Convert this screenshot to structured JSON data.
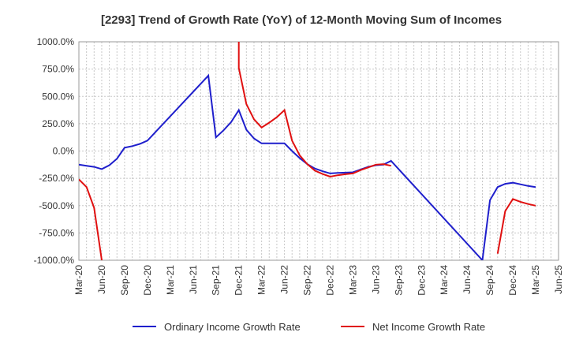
{
  "chart_data": {
    "type": "line",
    "title": "[2293]  Trend of Growth Rate (YoY) of 12-Month Moving Sum of Incomes",
    "xlabel": "",
    "ylabel": "",
    "ylim": [
      -1000,
      1000
    ],
    "y_ticks": [
      1000,
      750,
      500,
      250,
      0,
      -250,
      -500,
      -750,
      -1000
    ],
    "y_tick_labels": [
      "1000.0%",
      "750.0%",
      "500.0%",
      "250.0%",
      "0.0%",
      "-250.0%",
      "-500.0%",
      "-750.0%",
      "-1000.0%"
    ],
    "x_range": [
      "Mar-20",
      "Jun-25"
    ],
    "x_tick_labels": [
      "Mar-20",
      "Jun-20",
      "Sep-20",
      "Dec-20",
      "Mar-21",
      "Jun-21",
      "Sep-21",
      "Dec-21",
      "Mar-22",
      "Jun-22",
      "Sep-22",
      "Dec-22",
      "Mar-23",
      "Jun-23",
      "Sep-23",
      "Dec-23",
      "Mar-24",
      "Jun-24",
      "Sep-24",
      "Dec-24",
      "Mar-25",
      "Jun-25"
    ],
    "grid": true,
    "legend_position": "bottom",
    "series": [
      {
        "name": "Ordinary Income Growth Rate",
        "color": "#1f1fcc",
        "points": [
          [
            "Mar-20",
            -125
          ],
          [
            "Apr-20",
            -135
          ],
          [
            "May-20",
            -145
          ],
          [
            "Jun-20",
            -165
          ],
          [
            "Jul-20",
            -130
          ],
          [
            "Aug-20",
            -70
          ],
          [
            "Sep-20",
            30
          ],
          [
            "Oct-20",
            45
          ],
          [
            "Nov-20",
            65
          ],
          [
            "Dec-20",
            95
          ],
          [
            "Aug-21",
            690
          ],
          [
            "Sep-21",
            125
          ],
          [
            "Oct-21",
            190
          ],
          [
            "Nov-21",
            265
          ],
          [
            "Dec-21",
            375
          ],
          [
            "Jan-22",
            195
          ],
          [
            "Feb-22",
            115
          ],
          [
            "Mar-22",
            70
          ],
          [
            "Apr-22",
            70
          ],
          [
            "May-22",
            70
          ],
          [
            "Jun-22",
            70
          ],
          [
            "Jul-22",
            0
          ],
          [
            "Aug-22",
            -65
          ],
          [
            "Sep-22",
            -120
          ],
          [
            "Oct-22",
            -160
          ],
          [
            "Nov-22",
            -185
          ],
          [
            "Dec-22",
            -205
          ],
          [
            "Jan-23",
            -200
          ],
          [
            "Feb-23",
            -198
          ],
          [
            "Mar-23",
            -195
          ],
          [
            "Apr-23",
            -170
          ],
          [
            "May-23",
            -145
          ],
          [
            "Jun-23",
            -130
          ],
          [
            "Jul-23",
            -125
          ],
          [
            "Aug-23",
            -90
          ],
          [
            "Aug-24",
            -1000
          ],
          [
            "Sep-24",
            -450
          ],
          [
            "Oct-24",
            -330
          ],
          [
            "Nov-24",
            -300
          ],
          [
            "Dec-24",
            -290
          ],
          [
            "Jan-25",
            -305
          ],
          [
            "Feb-25",
            -320
          ],
          [
            "Mar-25",
            -330
          ]
        ]
      },
      {
        "name": "Net Income Growth Rate",
        "color": "#e01010",
        "points": [
          [
            "Mar-20",
            -260
          ],
          [
            "Apr-20",
            -330
          ],
          [
            "May-20",
            -520
          ],
          [
            "Jun-20",
            -1000
          ],
          null,
          [
            "Dec-21",
            1000
          ],
          [
            "Dec-21",
            760
          ],
          [
            "Jan-22",
            430
          ],
          [
            "Feb-22",
            290
          ],
          [
            "Mar-22",
            215
          ],
          [
            "Apr-22",
            260
          ],
          [
            "May-22",
            310
          ],
          [
            "Jun-22",
            375
          ],
          [
            "Jul-22",
            95
          ],
          [
            "Aug-22",
            -40
          ],
          [
            "Sep-22",
            -120
          ],
          [
            "Oct-22",
            -180
          ],
          [
            "Nov-22",
            -210
          ],
          [
            "Dec-22",
            -235
          ],
          [
            "Jan-23",
            -222
          ],
          [
            "Feb-23",
            -212
          ],
          [
            "Mar-23",
            -205
          ],
          [
            "Apr-23",
            -175
          ],
          [
            "May-23",
            -150
          ],
          [
            "Jun-23",
            -125
          ],
          [
            "Jul-23",
            -120
          ],
          [
            "Aug-23",
            -135
          ],
          null,
          [
            "Oct-24",
            -940
          ],
          [
            "Nov-24",
            -550
          ],
          [
            "Dec-24",
            -440
          ],
          [
            "Jan-25",
            -465
          ],
          [
            "Feb-25",
            -485
          ],
          [
            "Mar-25",
            -500
          ]
        ]
      }
    ]
  }
}
